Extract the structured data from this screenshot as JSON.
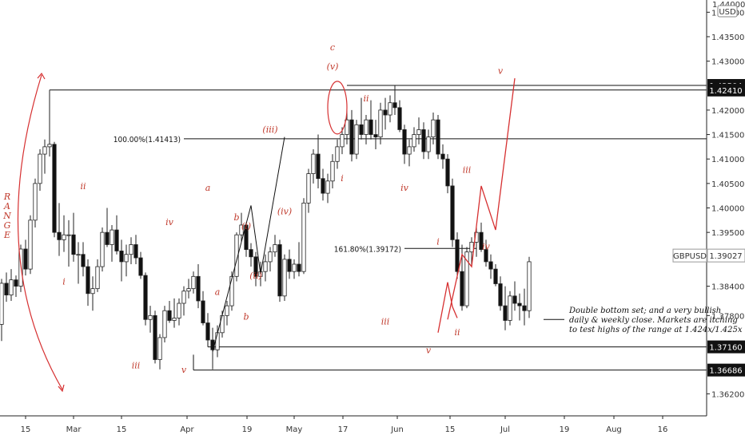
{
  "chart_data": {
    "type": "candlestick",
    "symbol": "GBPUSD",
    "currency": "USD",
    "last_price": "1.39027",
    "ylim": [
      1.3575,
      1.4425
    ],
    "y_ticks": [
      "1.36200",
      "1.36686",
      "1.37160",
      "1.37800",
      "1.38400",
      "1.39027",
      "1.39500",
      "1.40000",
      "1.40500",
      "1.41000",
      "1.41500",
      "1.42000",
      "1.42410",
      "1.42504",
      "1.43000",
      "1.43500",
      "1.44000"
    ],
    "y_tick_values": [
      1.362,
      1.36686,
      1.3716,
      1.378,
      1.384,
      1.39027,
      1.395,
      1.4,
      1.405,
      1.41,
      1.415,
      1.42,
      1.4241,
      1.42504,
      1.43,
      1.435,
      1.44
    ],
    "price_badges": [
      {
        "label": "1.42504",
        "value": 1.42504,
        "style": "dark"
      },
      {
        "label": "1.42410",
        "value": 1.4241,
        "style": "dark"
      },
      {
        "label": "GBPUSD",
        "value": 1.39027,
        "style": "light",
        "extra": "1.39027"
      },
      {
        "label": "1.37160",
        "value": 1.3716,
        "style": "dark"
      },
      {
        "label": "1.36686",
        "value": 1.36686,
        "style": "dark"
      }
    ],
    "x_ticks": [
      "15",
      "Mar",
      "15",
      "Apr",
      "19",
      "May",
      "17",
      "Jun",
      "15",
      "Jul",
      "19",
      "Aug",
      "16"
    ],
    "x_tick_index": [
      0.5,
      13.5,
      24.5,
      35.5,
      47.5,
      56.5,
      67.5,
      77.5,
      88.5,
      99.5,
      110.5,
      120.5,
      130.5
    ],
    "candles": [
      [
        1.3762,
        1.3855,
        1.3728,
        1.3846
      ],
      [
        1.3846,
        1.3868,
        1.3808,
        1.3822
      ],
      [
        1.3822,
        1.3875,
        1.381,
        1.3853
      ],
      [
        1.3853,
        1.3862,
        1.3818,
        1.384
      ],
      [
        1.384,
        1.3925,
        1.3828,
        1.3916
      ],
      [
        1.3916,
        1.3935,
        1.3862,
        1.3875
      ],
      [
        1.3875,
        1.3985,
        1.3865,
        1.3975
      ],
      [
        1.3975,
        1.406,
        1.396,
        1.405
      ],
      [
        1.405,
        1.412,
        1.4035,
        1.411
      ],
      [
        1.411,
        1.414,
        1.407,
        1.4125
      ],
      [
        1.4125,
        1.4241,
        1.4105,
        1.413
      ],
      [
        1.413,
        1.4135,
        1.394,
        1.395
      ],
      [
        1.395,
        1.401,
        1.3902,
        1.3935
      ],
      [
        1.3935,
        1.3985,
        1.391,
        1.3945
      ],
      [
        1.3945,
        1.3975,
        1.388,
        1.3945
      ],
      [
        1.3945,
        1.399,
        1.389,
        1.3905
      ],
      [
        1.3905,
        1.393,
        1.3845,
        1.3905
      ],
      [
        1.3905,
        1.393,
        1.386,
        1.388
      ],
      [
        1.388,
        1.3895,
        1.38,
        1.3825
      ],
      [
        1.3825,
        1.386,
        1.379,
        1.3835
      ],
      [
        1.3835,
        1.3895,
        1.3828,
        1.388
      ],
      [
        1.388,
        1.396,
        1.387,
        1.395
      ],
      [
        1.395,
        1.4,
        1.392,
        1.3925
      ],
      [
        1.3925,
        1.3965,
        1.389,
        1.3955
      ],
      [
        1.3955,
        1.3985,
        1.3905,
        1.3912
      ],
      [
        1.3912,
        1.3935,
        1.385,
        1.389
      ],
      [
        1.389,
        1.3925,
        1.386,
        1.3905
      ],
      [
        1.3905,
        1.394,
        1.3885,
        1.3925
      ],
      [
        1.3925,
        1.3945,
        1.3885,
        1.3898
      ],
      [
        1.3898,
        1.391,
        1.3855,
        1.3862
      ],
      [
        1.3862,
        1.3868,
        1.376,
        1.3772
      ],
      [
        1.3772,
        1.38,
        1.3745,
        1.378
      ],
      [
        1.378,
        1.379,
        1.3682,
        1.369
      ],
      [
        1.369,
        1.3742,
        1.367,
        1.3735
      ],
      [
        1.3735,
        1.38,
        1.3725,
        1.379
      ],
      [
        1.379,
        1.381,
        1.3765,
        1.377
      ],
      [
        1.377,
        1.3815,
        1.3755,
        1.3775
      ],
      [
        1.3775,
        1.3815,
        1.376,
        1.3805
      ],
      [
        1.3805,
        1.384,
        1.378,
        1.383
      ],
      [
        1.383,
        1.3855,
        1.3815,
        1.3835
      ],
      [
        1.3835,
        1.387,
        1.3825,
        1.386
      ],
      [
        1.386,
        1.3885,
        1.3795,
        1.381
      ],
      [
        1.381,
        1.383,
        1.376,
        1.3765
      ],
      [
        1.3765,
        1.3785,
        1.3725,
        1.373
      ],
      [
        1.373,
        1.3755,
        1.367,
        1.371
      ],
      [
        1.371,
        1.376,
        1.3695,
        1.3745
      ],
      [
        1.3745,
        1.379,
        1.3735,
        1.378
      ],
      [
        1.378,
        1.381,
        1.376,
        1.38
      ],
      [
        1.38,
        1.387,
        1.379,
        1.386
      ],
      [
        1.386,
        1.395,
        1.385,
        1.3945
      ],
      [
        1.3945,
        1.399,
        1.393,
        1.3965
      ],
      [
        1.3965,
        1.397,
        1.39,
        1.3915
      ],
      [
        1.3915,
        1.3928,
        1.388,
        1.39
      ],
      [
        1.39,
        1.391,
        1.384,
        1.386
      ],
      [
        1.386,
        1.389,
        1.384,
        1.387
      ],
      [
        1.387,
        1.3905,
        1.385,
        1.389
      ],
      [
        1.389,
        1.392,
        1.387,
        1.391
      ],
      [
        1.391,
        1.3945,
        1.39,
        1.3925
      ],
      [
        1.3925,
        1.3935,
        1.3808,
        1.382
      ],
      [
        1.382,
        1.3905,
        1.381,
        1.3895
      ],
      [
        1.3895,
        1.3915,
        1.3855,
        1.387
      ],
      [
        1.387,
        1.3895,
        1.3855,
        1.3885
      ],
      [
        1.3885,
        1.393,
        1.386,
        1.387
      ],
      [
        1.387,
        1.402,
        1.3865,
        1.401
      ],
      [
        1.401,
        1.408,
        1.399,
        1.407
      ],
      [
        1.407,
        1.412,
        1.405,
        1.411
      ],
      [
        1.411,
        1.415,
        1.404,
        1.406
      ],
      [
        1.406,
        1.408,
        1.4015,
        1.403
      ],
      [
        1.403,
        1.407,
        1.401,
        1.4055
      ],
      [
        1.4055,
        1.411,
        1.404,
        1.4095
      ],
      [
        1.4095,
        1.414,
        1.408,
        1.4125
      ],
      [
        1.4125,
        1.4165,
        1.411,
        1.415
      ],
      [
        1.415,
        1.421,
        1.413,
        1.418
      ],
      [
        1.418,
        1.42,
        1.4095,
        1.411
      ],
      [
        1.411,
        1.418,
        1.41,
        1.417
      ],
      [
        1.417,
        1.4225,
        1.414,
        1.415
      ],
      [
        1.415,
        1.419,
        1.413,
        1.418
      ],
      [
        1.418,
        1.422,
        1.414,
        1.415
      ],
      [
        1.415,
        1.418,
        1.412,
        1.4145
      ],
      [
        1.4145,
        1.4215,
        1.413,
        1.42
      ],
      [
        1.42,
        1.4225,
        1.416,
        1.419
      ],
      [
        1.419,
        1.423,
        1.4175,
        1.4215
      ],
      [
        1.4215,
        1.425,
        1.419,
        1.4205
      ],
      [
        1.4205,
        1.422,
        1.4155,
        1.416
      ],
      [
        1.416,
        1.417,
        1.409,
        1.411
      ],
      [
        1.411,
        1.414,
        1.4085,
        1.4125
      ],
      [
        1.4125,
        1.4165,
        1.4115,
        1.415
      ],
      [
        1.415,
        1.4185,
        1.413,
        1.416
      ],
      [
        1.416,
        1.4175,
        1.41,
        1.4115
      ],
      [
        1.4115,
        1.416,
        1.41,
        1.4145
      ],
      [
        1.4145,
        1.4195,
        1.413,
        1.418
      ],
      [
        1.418,
        1.419,
        1.41,
        1.411
      ],
      [
        1.411,
        1.413,
        1.408,
        1.41
      ],
      [
        1.41,
        1.411,
        1.403,
        1.4045
      ],
      [
        1.4045,
        1.406,
        1.392,
        1.3935
      ],
      [
        1.3935,
        1.395,
        1.3855,
        1.387
      ],
      [
        1.387,
        1.3925,
        1.379,
        1.38
      ],
      [
        1.38,
        1.392,
        1.3795,
        1.391
      ],
      [
        1.391,
        1.394,
        1.388,
        1.393
      ],
      [
        1.393,
        1.3965,
        1.39,
        1.395
      ],
      [
        1.395,
        1.397,
        1.391,
        1.3915
      ],
      [
        1.3915,
        1.3935,
        1.388,
        1.389
      ],
      [
        1.389,
        1.3905,
        1.3855,
        1.3875
      ],
      [
        1.3875,
        1.3885,
        1.384,
        1.3845
      ],
      [
        1.3845,
        1.386,
        1.379,
        1.38
      ],
      [
        1.38,
        1.384,
        1.375,
        1.377
      ],
      [
        1.377,
        1.383,
        1.376,
        1.382
      ],
      [
        1.382,
        1.385,
        1.379,
        1.3805
      ],
      [
        1.3805,
        1.3825,
        1.377,
        1.38
      ],
      [
        1.38,
        1.3835,
        1.376,
        1.379
      ],
      [
        1.379,
        1.39,
        1.3775,
        1.389
      ]
    ],
    "candle_spacing_factor": 1,
    "hlines": [
      {
        "value": 1.4241,
        "from_index": 10,
        "label": ""
      },
      {
        "value": 1.42504,
        "from_index": 72,
        "label": ""
      },
      {
        "value": 1.41413,
        "from_index": 38,
        "label": "100.00%(1.41413)"
      },
      {
        "value": 1.39172,
        "from_index": 84,
        "to_index": 99,
        "label": "161.80%(1.39172)"
      },
      {
        "value": 1.3716,
        "from_index": 43,
        "label": ""
      },
      {
        "value": 1.36686,
        "from_index": 40,
        "label": ""
      }
    ],
    "wave_labels": [
      {
        "text": "ii",
        "i": 17,
        "v": 1.4038
      },
      {
        "text": "i",
        "i": 13,
        "v": 1.3843
      },
      {
        "text": "iii",
        "i": 28,
        "v": 1.3672
      },
      {
        "text": "iv",
        "i": 35,
        "v": 1.3965
      },
      {
        "text": "v",
        "i": 38,
        "v": 1.3663
      },
      {
        "text": "a",
        "i": 43,
        "v": 1.4035
      },
      {
        "text": "a",
        "i": 45,
        "v": 1.3822
      },
      {
        "text": "b",
        "i": 49,
        "v": 1.3975
      },
      {
        "text": "b",
        "i": 51,
        "v": 1.3772
      },
      {
        "text": "(i)",
        "i": 51,
        "v": 1.3957
      },
      {
        "text": "(ii)",
        "i": 53,
        "v": 1.3856
      },
      {
        "text": "(iii)",
        "i": 56,
        "v": 1.4154
      },
      {
        "text": "(iv)",
        "i": 59,
        "v": 1.3987
      },
      {
        "text": "c",
        "i": 69,
        "v": 1.4322
      },
      {
        "text": "(v)",
        "i": 69,
        "v": 1.4283
      },
      {
        "text": "ii",
        "i": 76,
        "v": 1.4218
      },
      {
        "text": "i",
        "i": 71,
        "v": 1.4055
      },
      {
        "text": "iv",
        "i": 84,
        "v": 1.4035
      },
      {
        "text": "iii",
        "i": 80,
        "v": 1.3762
      },
      {
        "text": "i",
        "i": 91,
        "v": 1.3925
      },
      {
        "text": "v",
        "i": 89,
        "v": 1.3703
      },
      {
        "text": "ii",
        "i": 95,
        "v": 1.374
      },
      {
        "text": "iii",
        "i": 97,
        "v": 1.4072
      },
      {
        "text": "iv",
        "i": 101,
        "v": 1.3915
      },
      {
        "text": "v",
        "i": 104,
        "v": 1.4274
      }
    ],
    "range_label": [
      "R",
      "A",
      "N",
      "G",
      "E"
    ],
    "note": [
      "Double bottom set; and a very bullish",
      "daily & weekly close. Markets are itching",
      "to test highs of the range at 1.424x/1.425x"
    ]
  }
}
